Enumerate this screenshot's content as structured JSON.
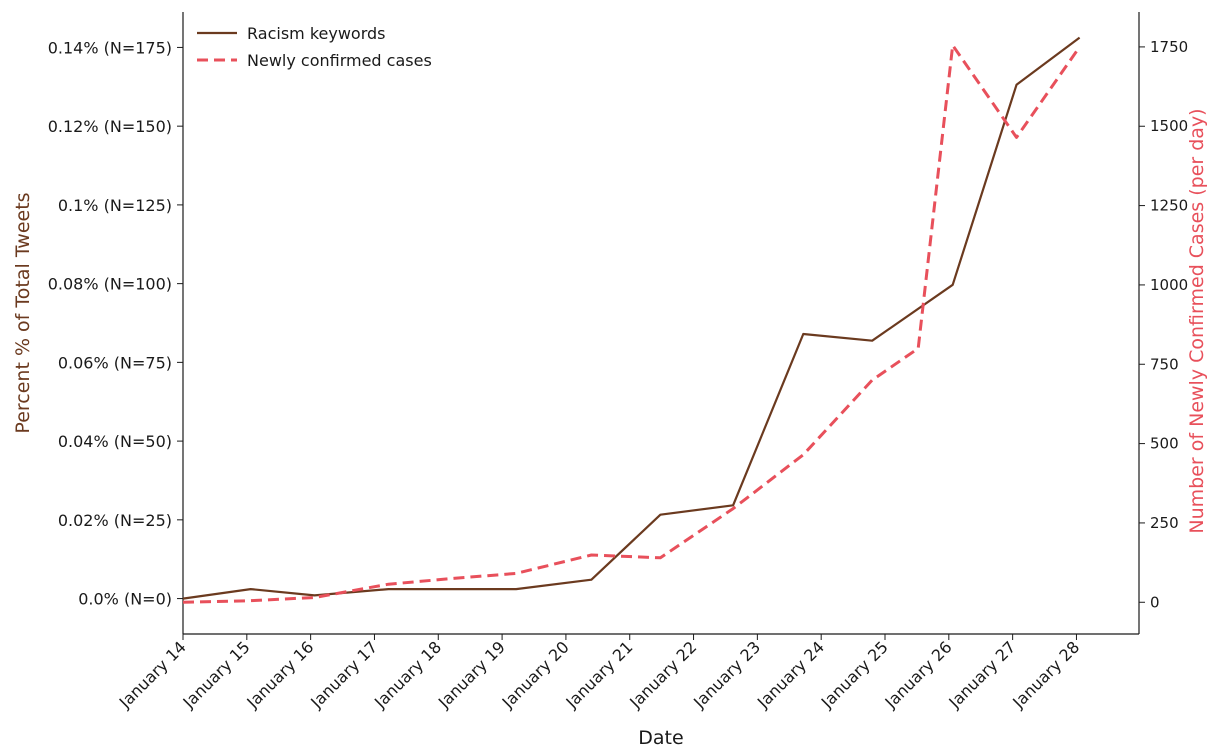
{
  "chart_data": {
    "type": "line",
    "xlabel": "Date",
    "ylabel_left": "Percent % of Total Tweets",
    "ylabel_right": "Number of Newly Confirmed Cases (per day)",
    "x_tick_labels": [
      "January 14",
      "January 15",
      "January 16",
      "January 17",
      "January 18",
      "January 19",
      "January 20",
      "January 21",
      "January 22",
      "January 23",
      "January 24",
      "January 25",
      "January 26",
      "January 27",
      "January 28"
    ],
    "left_axis": {
      "range": [
        -0.009,
        0.149
      ],
      "ticks": [
        0,
        0.02,
        0.04,
        0.06,
        0.08,
        0.1,
        0.12,
        0.14
      ],
      "tick_labels": [
        "0.0% (N=0)",
        "0.02% (N=25)",
        "0.04% (N=50)",
        "0.06% (N=75)",
        "0.08% (N=100)",
        "0.1% (N=125)",
        "0.12% (N=150)",
        "0.14% (N=175)"
      ]
    },
    "right_axis": {
      "range": [
        -100,
        1860
      ],
      "ticks": [
        0,
        250,
        500,
        750,
        1000,
        1250,
        1500,
        1750
      ],
      "tick_labels": [
        "0",
        "250",
        "500",
        "750",
        "1000",
        "1250",
        "1500",
        "1750"
      ]
    },
    "x_range": [
      0,
      14.98
    ],
    "series": [
      {
        "name": "Racism keywords",
        "axis": "left",
        "style": "solid",
        "color": "#6b3a1f",
        "x": [
          0,
          1.06,
          2.06,
          3.22,
          4.22,
          5.22,
          6.4,
          7.48,
          8.62,
          9.72,
          10.8,
          12.06,
          13.06,
          14.05
        ],
        "values": [
          0,
          0.0024,
          0.0008,
          0.0024,
          0.0024,
          0.0024,
          0.0048,
          0.0213,
          0.0237,
          0.0672,
          0.0655,
          0.0797,
          0.1305,
          0.1425
        ]
      },
      {
        "name": "Newly confirmed cases",
        "axis": "right",
        "style": "dashed",
        "color": "#e8505b",
        "x": [
          0,
          1.06,
          2.06,
          3.22,
          4.22,
          5.22,
          6.4,
          7.48,
          8.62,
          9.72,
          10.8,
          11.52,
          12.06,
          13.06,
          14.05
        ],
        "values": [
          0,
          5,
          15,
          57,
          75,
          91,
          149,
          140,
          295,
          465,
          700,
          800,
          1755,
          1465,
          1750
        ]
      }
    ],
    "legend": {
      "location": "upper-left"
    },
    "grid": false,
    "colors": {
      "left_label": "#6b3a1f",
      "right_label": "#e8505b"
    }
  }
}
